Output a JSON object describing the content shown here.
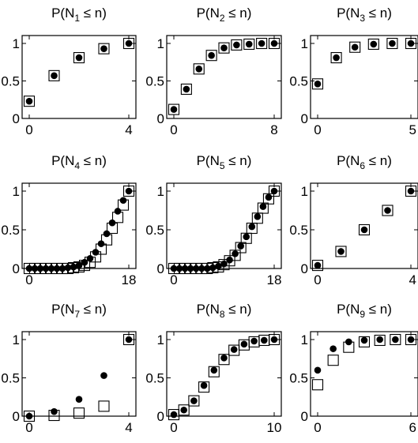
{
  "chart_data": [
    {
      "type": "scatter",
      "title": {
        "main": "P(N",
        "sub": "1",
        "rest": " ≤ n)"
      },
      "x_ticks": [
        "0",
        "4"
      ],
      "y_ticks": [
        "0",
        "0.5",
        "1"
      ],
      "xlim": [
        0,
        4
      ],
      "ylim": [
        0,
        1.05
      ],
      "series": [
        {
          "marker": "square",
          "x": [
            0,
            1,
            2,
            3,
            4
          ],
          "y": [
            0.23,
            0.57,
            0.81,
            0.93,
            1.0
          ]
        },
        {
          "marker": "dot",
          "x": [
            0,
            1,
            2,
            3,
            4
          ],
          "y": [
            0.23,
            0.57,
            0.81,
            0.93,
            1.0
          ]
        }
      ]
    },
    {
      "type": "scatter",
      "title": {
        "main": "P(N",
        "sub": "2",
        "rest": " ≤ n)"
      },
      "x_ticks": [
        "0",
        "8"
      ],
      "y_ticks": [
        "0",
        "0.5",
        "1"
      ],
      "xlim": [
        0,
        8
      ],
      "ylim": [
        0,
        1.05
      ],
      "series": [
        {
          "marker": "square",
          "x": [
            0,
            1,
            2,
            3,
            4,
            5,
            6,
            7,
            8
          ],
          "y": [
            0.12,
            0.39,
            0.66,
            0.84,
            0.94,
            0.98,
            0.99,
            1.0,
            1.0
          ]
        },
        {
          "marker": "dot",
          "x": [
            0,
            1,
            2,
            3,
            4,
            5,
            6,
            7,
            8
          ],
          "y": [
            0.12,
            0.39,
            0.66,
            0.84,
            0.94,
            0.98,
            0.99,
            1.0,
            1.0
          ]
        }
      ]
    },
    {
      "type": "scatter",
      "title": {
        "main": "P(N",
        "sub": "3",
        "rest": " ≤ n)"
      },
      "x_ticks": [
        "0",
        "5"
      ],
      "y_ticks": [
        "0",
        "0.5",
        "1"
      ],
      "xlim": [
        0,
        5
      ],
      "ylim": [
        0,
        1.05
      ],
      "series": [
        {
          "marker": "square",
          "x": [
            0,
            1,
            2,
            3,
            4,
            5
          ],
          "y": [
            0.46,
            0.81,
            0.95,
            0.99,
            1.0,
            1.0
          ]
        },
        {
          "marker": "dot",
          "x": [
            0,
            1,
            2,
            3,
            4,
            5
          ],
          "y": [
            0.46,
            0.81,
            0.95,
            0.99,
            1.0,
            1.0
          ]
        }
      ]
    },
    {
      "type": "scatter",
      "title": {
        "main": "P(N",
        "sub": "4",
        "rest": " ≤ n)"
      },
      "x_ticks": [
        "0",
        "18"
      ],
      "y_ticks": [
        "0",
        "0.5",
        "1"
      ],
      "xlim": [
        0,
        18
      ],
      "ylim": [
        0,
        1.05
      ],
      "series": [
        {
          "marker": "square",
          "x": [
            0,
            1,
            2,
            3,
            4,
            5,
            6,
            7,
            8,
            9,
            10,
            11,
            12,
            13,
            14,
            15,
            16,
            17,
            18
          ],
          "y": [
            0,
            0,
            0,
            0,
            0,
            0,
            0,
            0,
            0.01,
            0.02,
            0.04,
            0.08,
            0.15,
            0.25,
            0.37,
            0.52,
            0.66,
            0.82,
            1.0
          ]
        },
        {
          "marker": "dot",
          "x": [
            0,
            1,
            2,
            3,
            4,
            5,
            6,
            7,
            8,
            9,
            10,
            11,
            12,
            13,
            14,
            15,
            16,
            17,
            18
          ],
          "y": [
            0,
            0,
            0,
            0,
            0,
            0,
            0,
            0.01,
            0.02,
            0.04,
            0.08,
            0.13,
            0.21,
            0.32,
            0.45,
            0.59,
            0.74,
            0.88,
            1.0
          ]
        }
      ]
    },
    {
      "type": "scatter",
      "title": {
        "main": "P(N",
        "sub": "5",
        "rest": " ≤ n)"
      },
      "x_ticks": [
        "0",
        "18"
      ],
      "y_ticks": [
        "0",
        "0.5",
        "1"
      ],
      "xlim": [
        0,
        18
      ],
      "ylim": [
        0,
        1.05
      ],
      "series": [
        {
          "marker": "square",
          "x": [
            0,
            1,
            2,
            3,
            4,
            5,
            6,
            7,
            8,
            9,
            10,
            11,
            12,
            13,
            14,
            15,
            16,
            17,
            18
          ],
          "y": [
            0,
            0,
            0,
            0,
            0,
            0,
            0,
            0.01,
            0.02,
            0.05,
            0.1,
            0.17,
            0.27,
            0.39,
            0.52,
            0.65,
            0.78,
            0.9,
            1.0
          ]
        },
        {
          "marker": "dot",
          "x": [
            0,
            1,
            2,
            3,
            4,
            5,
            6,
            7,
            8,
            9,
            10,
            11,
            12,
            13,
            14,
            15,
            16,
            17,
            18
          ],
          "y": [
            0,
            0,
            0,
            0,
            0,
            0,
            0,
            0.01,
            0.03,
            0.06,
            0.11,
            0.19,
            0.29,
            0.41,
            0.54,
            0.67,
            0.8,
            0.92,
            1.0
          ]
        }
      ]
    },
    {
      "type": "scatter",
      "title": {
        "main": "P(N",
        "sub": "6",
        "rest": " ≤ n)"
      },
      "x_ticks": [
        "0",
        "4"
      ],
      "y_ticks": [
        "0",
        "0.5",
        "1"
      ],
      "xlim": [
        0,
        4
      ],
      "ylim": [
        0,
        1.05
      ],
      "series": [
        {
          "marker": "square",
          "x": [
            0,
            1,
            2,
            3,
            4
          ],
          "y": [
            0.04,
            0.22,
            0.5,
            0.75,
            1.0
          ]
        },
        {
          "marker": "dot",
          "x": [
            0,
            1,
            2,
            3,
            4
          ],
          "y": [
            0.04,
            0.22,
            0.5,
            0.75,
            1.0
          ]
        }
      ]
    },
    {
      "type": "scatter",
      "title": {
        "main": "P(N",
        "sub": "7",
        "rest": " ≤ n)"
      },
      "x_ticks": [
        "0",
        "4"
      ],
      "y_ticks": [
        "0",
        "0.5",
        "1"
      ],
      "xlim": [
        0,
        4
      ],
      "ylim": [
        0,
        1.05
      ],
      "series": [
        {
          "marker": "square",
          "x": [
            0,
            1,
            2,
            3,
            4
          ],
          "y": [
            0.0,
            0.01,
            0.04,
            0.13,
            1.0
          ]
        },
        {
          "marker": "dot",
          "x": [
            0,
            1,
            2,
            3,
            4
          ],
          "y": [
            0.0,
            0.06,
            0.22,
            0.53,
            1.0
          ]
        }
      ]
    },
    {
      "type": "scatter",
      "title": {
        "main": "P(N",
        "sub": "8",
        "rest": " ≤ n)"
      },
      "x_ticks": [
        "0",
        "10"
      ],
      "y_ticks": [
        "0",
        "0.5",
        "1"
      ],
      "xlim": [
        0,
        10
      ],
      "ylim": [
        0,
        1.05
      ],
      "series": [
        {
          "marker": "square",
          "x": [
            0,
            1,
            2,
            3,
            4,
            5,
            6,
            7,
            8,
            9,
            10
          ],
          "y": [
            0.02,
            0.08,
            0.2,
            0.38,
            0.58,
            0.74,
            0.86,
            0.93,
            0.97,
            0.99,
            1.0
          ]
        },
        {
          "marker": "dot",
          "x": [
            0,
            1,
            2,
            3,
            4,
            5,
            6,
            7,
            8,
            9,
            10
          ],
          "y": [
            0.02,
            0.08,
            0.2,
            0.4,
            0.6,
            0.76,
            0.87,
            0.94,
            0.98,
            0.99,
            1.0
          ]
        }
      ]
    },
    {
      "type": "scatter",
      "title": {
        "main": "P(N",
        "sub": "9",
        "rest": " ≤ n)"
      },
      "x_ticks": [
        "0",
        "6"
      ],
      "y_ticks": [
        "0",
        "0.5",
        "1"
      ],
      "xlim": [
        0,
        6
      ],
      "ylim": [
        0,
        1.05
      ],
      "series": [
        {
          "marker": "square",
          "x": [
            0,
            1,
            2,
            3,
            4,
            5,
            6
          ],
          "y": [
            0.41,
            0.73,
            0.9,
            0.97,
            0.99,
            1.0,
            1.0
          ]
        },
        {
          "marker": "dot",
          "x": [
            0,
            1,
            2,
            3,
            4,
            5,
            6
          ],
          "y": [
            0.6,
            0.88,
            0.97,
            0.99,
            1.0,
            1.0,
            1.0
          ]
        }
      ]
    }
  ]
}
